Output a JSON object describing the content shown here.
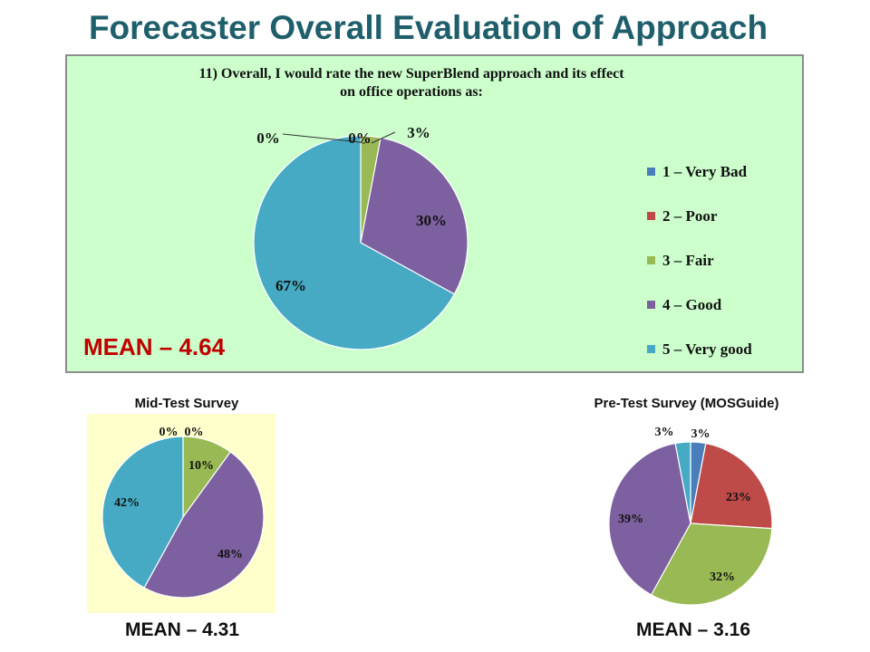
{
  "title": "Forecaster Overall Evaluation of Approach",
  "question_line1": "11)  Overall, I would rate the new SuperBlend approach and its effect",
  "question_line2": "on office operations as:",
  "mean_main": "MEAN – 4.64",
  "mid_label": "Mid-Test  Survey",
  "mid_mean": "MEAN – 4.31",
  "pre_label": "Pre-Test Survey (MOSGuide)",
  "pre_mean": "MEAN – 3.16",
  "legend": [
    {
      "label": "1 – Very Bad",
      "color": "#4a7ebb"
    },
    {
      "label": "2 – Poor",
      "color": "#be4b48"
    },
    {
      "label": "3 – Fair",
      "color": "#98b954"
    },
    {
      "label": "4 – Good",
      "color": "#7d60a0"
    },
    {
      "label": "5 – Very good",
      "color": "#46aac4"
    }
  ],
  "chart_data": [
    {
      "type": "pie",
      "title": "11)  Overall, I would rate the new SuperBlend approach and its effect on office operations as:",
      "categories": [
        "1 – Very Bad",
        "2 – Poor",
        "3 – Fair",
        "4 – Good",
        "5 – Very good"
      ],
      "values": [
        0,
        0,
        3,
        30,
        67
      ],
      "labels": [
        "0%",
        "0%",
        "3%",
        "30%",
        "67%"
      ],
      "colors": [
        "#4a7ebb",
        "#be4b48",
        "#98b954",
        "#7d60a0",
        "#46aac4"
      ],
      "legend": "right",
      "mean": 4.64
    },
    {
      "type": "pie",
      "title": "Mid-Test  Survey",
      "categories": [
        "1 – Very Bad",
        "2 – Poor",
        "3 – Fair",
        "4 – Good",
        "5 – Very good"
      ],
      "values": [
        0,
        0,
        10,
        48,
        42
      ],
      "labels": [
        "0%",
        "0%",
        "10%",
        "48%",
        "42%"
      ],
      "colors": [
        "#4a7ebb",
        "#be4b48",
        "#98b954",
        "#7d60a0",
        "#46aac4"
      ],
      "mean": 4.31
    },
    {
      "type": "pie",
      "title": "Pre-Test Survey (MOSGuide)",
      "categories": [
        "1 – Very Bad",
        "2 – Poor",
        "3 – Fair",
        "4 – Good",
        "5 – Very good"
      ],
      "values": [
        3,
        23,
        32,
        39,
        3
      ],
      "labels": [
        "3%",
        "23%",
        "32%",
        "39%",
        "3%"
      ],
      "colors": [
        "#4a7ebb",
        "#be4b48",
        "#98b954",
        "#7d60a0",
        "#46aac4"
      ],
      "mean": 3.16
    }
  ]
}
